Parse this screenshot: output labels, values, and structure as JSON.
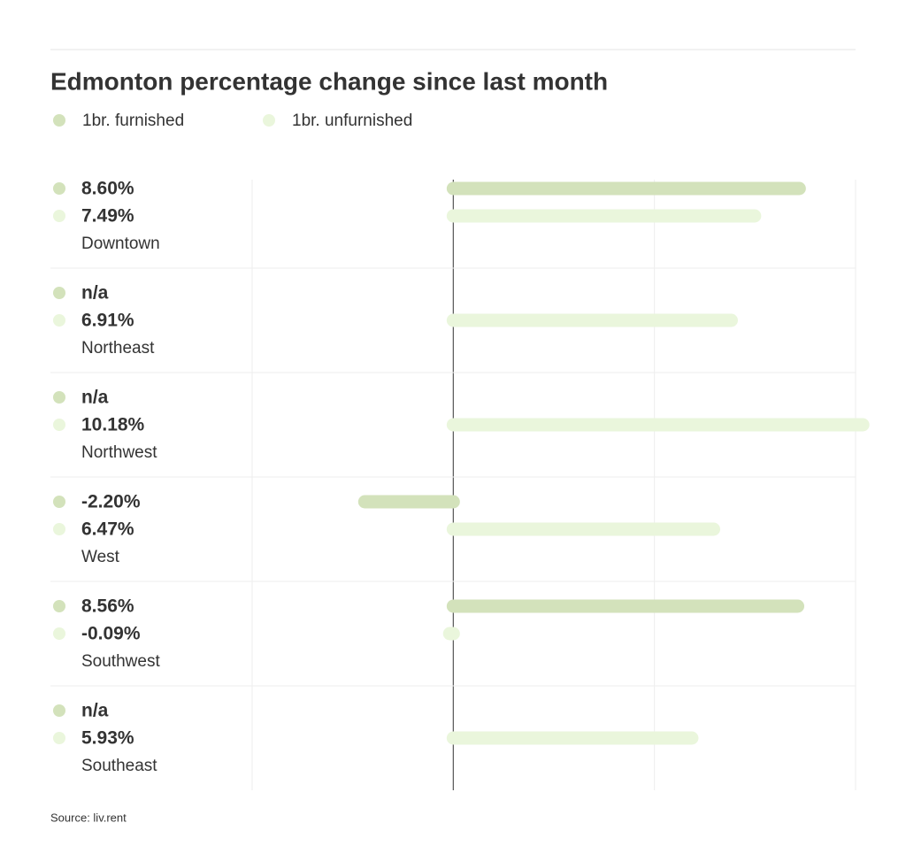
{
  "chart_data": {
    "type": "bar",
    "orientation": "horizontal",
    "title": "Edmonton percentage change since last month",
    "categories": [
      "Downtown",
      "Northeast",
      "Northwest",
      "West",
      "Southwest",
      "Southeast"
    ],
    "series": [
      {
        "name": "1br. furnished",
        "color": "#d3e2bb",
        "values": [
          8.6,
          null,
          null,
          -2.2,
          8.56,
          null
        ],
        "value_labels": [
          "8.60%",
          "n/a",
          "n/a",
          "-2.20%",
          "8.56%",
          "n/a"
        ]
      },
      {
        "name": "1br. unfurnished",
        "color": "#eaf6dc",
        "values": [
          7.49,
          6.91,
          10.18,
          6.47,
          -0.09,
          5.93
        ],
        "value_labels": [
          "7.49%",
          "6.91%",
          "10.18%",
          "6.47%",
          "-0.09%",
          "5.93%"
        ]
      }
    ],
    "xlim": [
      -5,
      10
    ],
    "xticks": [
      -5,
      0,
      5,
      10
    ],
    "grid": true,
    "source": "Source: liv.rent"
  }
}
